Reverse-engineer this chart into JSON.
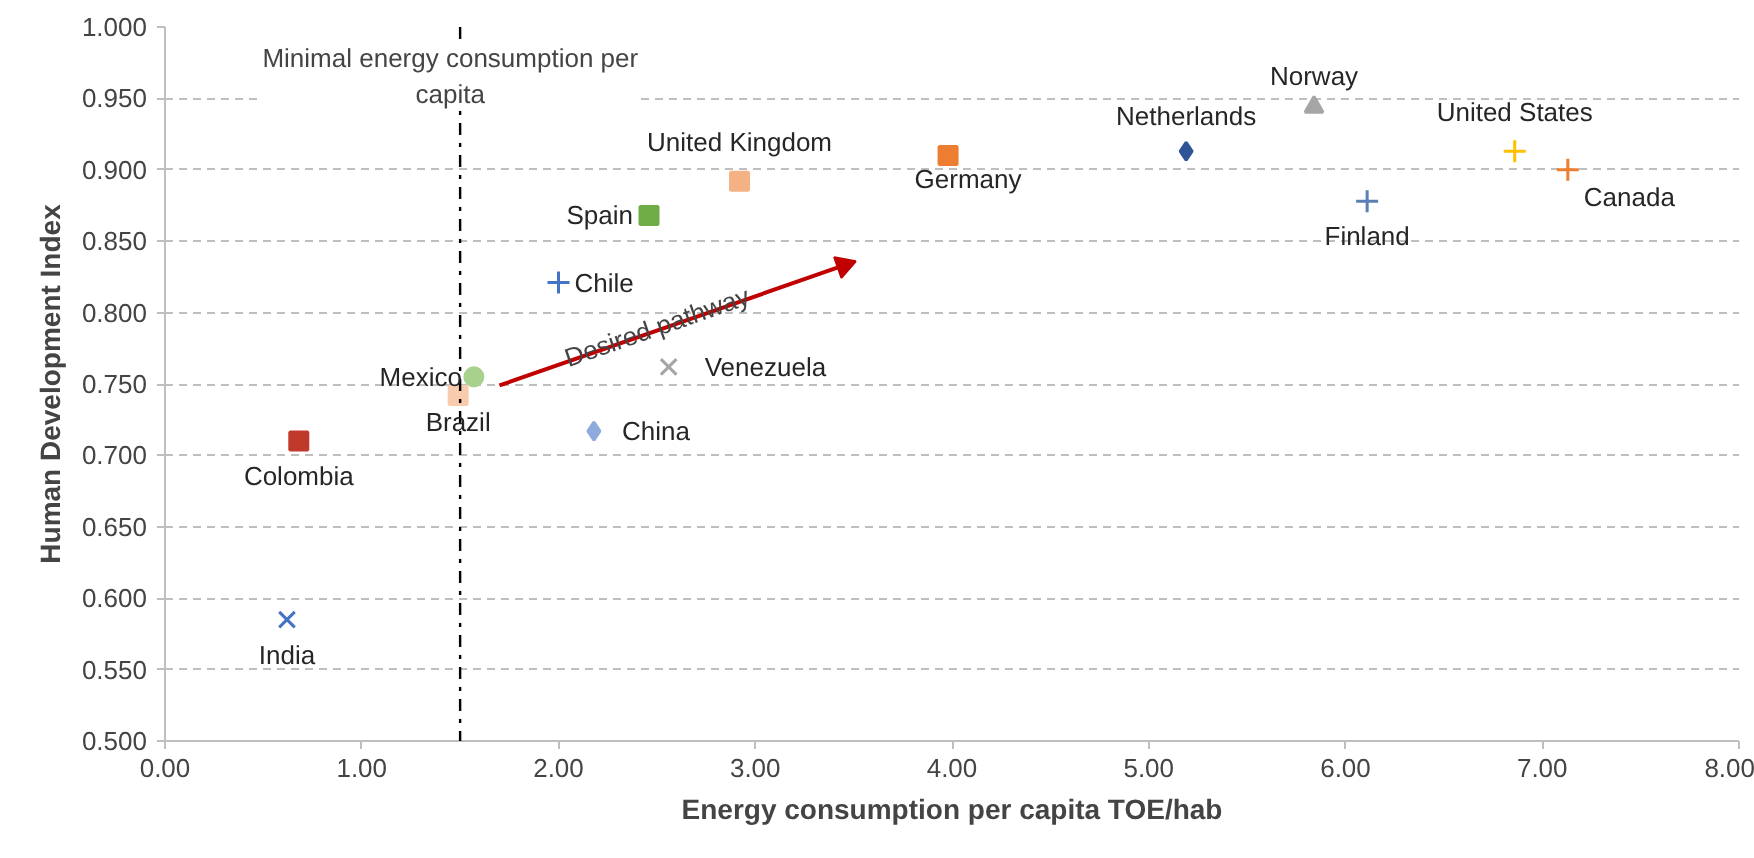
{
  "chart_data": {
    "type": "scatter",
    "xlabel": "Energy consumption per capita TOE/hab",
    "ylabel": "Human Development Index",
    "xlim": [
      0,
      8
    ],
    "ylim": [
      0.5,
      1.0
    ],
    "xticks": [
      {
        "value": 0,
        "label": "0.00"
      },
      {
        "value": 1,
        "label": "1.00"
      },
      {
        "value": 2,
        "label": "2.00"
      },
      {
        "value": 3,
        "label": "3.00"
      },
      {
        "value": 4,
        "label": "4.00"
      },
      {
        "value": 5,
        "label": "5.00"
      },
      {
        "value": 6,
        "label": "6.00"
      },
      {
        "value": 7,
        "label": "7.00"
      },
      {
        "value": 8,
        "label": "8.00"
      }
    ],
    "yticks": [
      {
        "value": 0.5,
        "label": "0.500"
      },
      {
        "value": 0.55,
        "label": "0.550"
      },
      {
        "value": 0.6,
        "label": "0.600"
      },
      {
        "value": 0.65,
        "label": "0.650"
      },
      {
        "value": 0.7,
        "label": "0.700"
      },
      {
        "value": 0.75,
        "label": "0.750"
      },
      {
        "value": 0.8,
        "label": "0.800"
      },
      {
        "value": 0.85,
        "label": "0.850"
      },
      {
        "value": 0.9,
        "label": "0.900"
      },
      {
        "value": 0.95,
        "label": "0.950"
      },
      {
        "value": 1.0,
        "label": "1.000"
      }
    ],
    "grid": "y",
    "ref_lines": [
      {
        "axis": "x",
        "value": 1.5,
        "label": "Minimal energy consumption per capita",
        "color": "#000000",
        "line_style": "dotted"
      }
    ],
    "annotations": [
      {
        "text": "Desired pathway",
        "x": 2.5,
        "y": 0.79
      }
    ],
    "series": [
      {
        "name": "India",
        "color": "#4472c4",
        "marker": "x",
        "x": [
          0.62
        ],
        "values": [
          0.585
        ]
      },
      {
        "name": "Colombia",
        "color": "#c0392b",
        "marker": "square",
        "x": [
          0.68
        ],
        "values": [
          0.71
        ]
      },
      {
        "name": "Brazil",
        "color": "#f8cbad",
        "marker": "square",
        "x": [
          1.49
        ],
        "values": [
          0.742
        ]
      },
      {
        "name": "Mexico",
        "color": "#a9d18e",
        "marker": "circle",
        "x": [
          1.57
        ],
        "values": [
          0.755
        ]
      },
      {
        "name": "China",
        "color": "#8faadc",
        "marker": "diamond",
        "x": [
          2.18
        ],
        "values": [
          0.717
        ]
      },
      {
        "name": "Chile",
        "color": "#4472c4",
        "marker": "cross",
        "x": [
          2.0
        ],
        "values": [
          0.821
        ]
      },
      {
        "name": "Spain",
        "color": "#70ad47",
        "marker": "square",
        "x": [
          2.46
        ],
        "values": [
          0.868
        ]
      },
      {
        "name": "United Kingdom",
        "color": "#f4b183",
        "marker": "square",
        "x": [
          2.92
        ],
        "values": [
          0.892
        ]
      },
      {
        "name": "Venezuela",
        "color": "#a5a5a5",
        "marker": "x",
        "x": [
          2.56
        ],
        "values": [
          0.762
        ]
      },
      {
        "name": "Germany",
        "color": "#ed7d31",
        "marker": "square",
        "x": [
          3.98
        ],
        "values": [
          0.91
        ]
      },
      {
        "name": "Netherlands",
        "color": "#2f5597",
        "marker": "diamond",
        "x": [
          5.19
        ],
        "values": [
          0.913
        ]
      },
      {
        "name": "Norway",
        "color": "#a5a5a5",
        "marker": "triangle",
        "x": [
          5.84
        ],
        "values": [
          0.944
        ]
      },
      {
        "name": "Finland",
        "color": "#5b7fb5",
        "marker": "cross",
        "x": [
          6.11
        ],
        "values": [
          0.878
        ]
      },
      {
        "name": "United States",
        "color": "#ffc000",
        "marker": "cross",
        "x": [
          6.86
        ],
        "values": [
          0.913
        ]
      },
      {
        "name": "Canada",
        "color": "#ed7d31",
        "marker": "cross",
        "x": [
          7.13
        ],
        "values": [
          0.9
        ]
      },
      {
        "type": "line",
        "color": "#c00000",
        "x": [
          1.7,
          3.45
        ],
        "values": [
          0.749,
          0.833
        ]
      }
    ]
  }
}
